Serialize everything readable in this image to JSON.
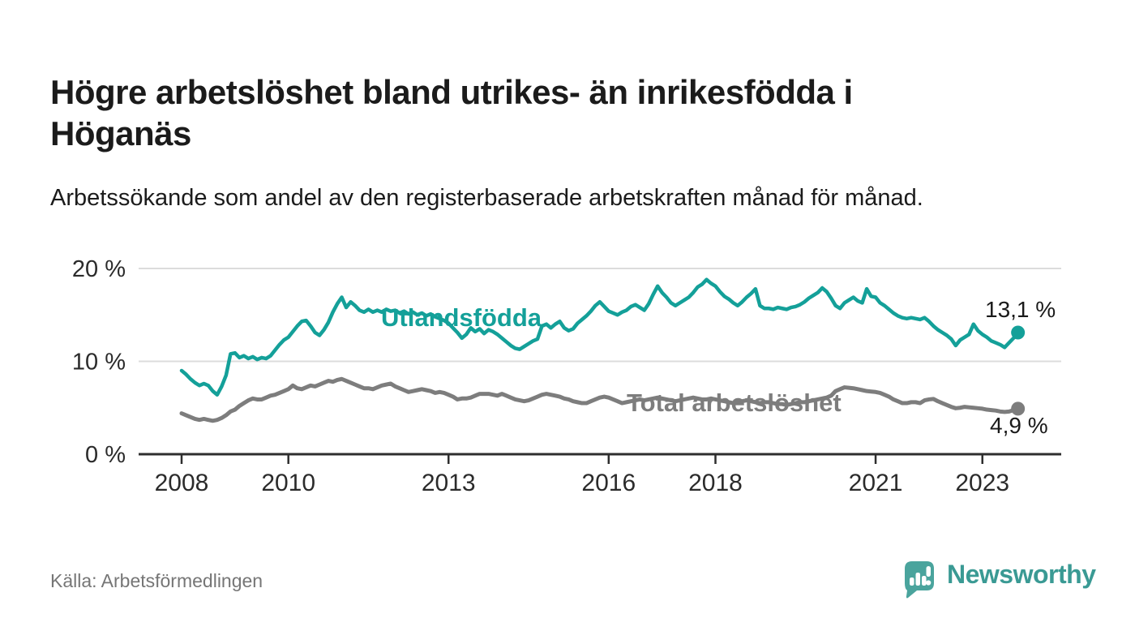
{
  "header": {
    "title": "Högre arbetslöshet bland utrikes- än inrikesfödda i Höganäs",
    "subtitle": "Arbetssökande som andel av den registerbaserade arbetskraften månad för månad."
  },
  "source": {
    "label": "Källa: Arbetsförmedlingen"
  },
  "branding": {
    "name": "Newsworthy",
    "icon": "newsworthy-speech-bubble-chart-icon",
    "icon_color": "#4aa49d",
    "text_color": "#3a9a94"
  },
  "chart_data": {
    "type": "line",
    "title": "Högre arbetslöshet bland utrikes- än inrikesfödda i Höganäs",
    "subtitle": "Arbetssökande som andel av den registerbaserade arbetskraften månad för månad.",
    "xlabel": "",
    "ylabel": "",
    "x_start_year": 2008,
    "x_step_months": 1,
    "x_end": "2023-09",
    "ylim": [
      0,
      21
    ],
    "grid": "horizontal",
    "y_ticks": [
      {
        "value": 0,
        "label": "0 %"
      },
      {
        "value": 10,
        "label": "10 %"
      },
      {
        "value": 20,
        "label": "20 %"
      }
    ],
    "x_ticks": [
      {
        "value": 2008,
        "label": "2008"
      },
      {
        "value": 2010,
        "label": "2010"
      },
      {
        "value": 2013,
        "label": "2013"
      },
      {
        "value": 2016,
        "label": "2016"
      },
      {
        "value": 2018,
        "label": "2018"
      },
      {
        "value": 2021,
        "label": "2021"
      },
      {
        "value": 2023,
        "label": "2023"
      }
    ],
    "series": [
      {
        "name": "Utlandsfödda",
        "color": "#14a099",
        "end_label": "13,1 %",
        "end_value": 13.1,
        "values": [
          9.0,
          8.6,
          8.1,
          7.7,
          7.4,
          7.6,
          7.4,
          6.8,
          6.4,
          7.3,
          8.5,
          10.8,
          10.9,
          10.4,
          10.6,
          10.3,
          10.5,
          10.2,
          10.4,
          10.3,
          10.6,
          11.2,
          11.8,
          12.3,
          12.6,
          13.2,
          13.8,
          14.3,
          14.4,
          13.8,
          13.1,
          12.8,
          13.4,
          14.2,
          15.3,
          16.2,
          16.9,
          15.8,
          16.4,
          16.0,
          15.5,
          15.3,
          15.6,
          15.3,
          15.5,
          15.3,
          15.6,
          15.4,
          15.5,
          15.2,
          15.4,
          15.1,
          15.3,
          15.0,
          15.2,
          14.9,
          15.1,
          14.8,
          14.6,
          14.4,
          14.1,
          13.6,
          13.1,
          12.5,
          12.9,
          13.6,
          13.2,
          13.5,
          13.0,
          13.4,
          13.2,
          12.9,
          12.5,
          12.1,
          11.7,
          11.4,
          11.3,
          11.6,
          11.9,
          12.2,
          12.4,
          13.8,
          14.0,
          13.6,
          14.0,
          14.3,
          13.6,
          13.3,
          13.5,
          14.1,
          14.5,
          14.9,
          15.4,
          16.0,
          16.4,
          15.9,
          15.4,
          15.2,
          15.0,
          15.3,
          15.5,
          15.9,
          16.1,
          15.8,
          15.5,
          16.2,
          17.2,
          18.1,
          17.4,
          16.9,
          16.3,
          16.0,
          16.3,
          16.6,
          16.9,
          17.4,
          18.0,
          18.3,
          18.8,
          18.4,
          18.1,
          17.5,
          17.0,
          16.7,
          16.3,
          16.0,
          16.4,
          16.9,
          17.3,
          17.8,
          16.0,
          15.7,
          15.7,
          15.6,
          15.8,
          15.7,
          15.6,
          15.8,
          15.9,
          16.1,
          16.4,
          16.8,
          17.1,
          17.4,
          17.9,
          17.5,
          16.8,
          16.0,
          15.7,
          16.3,
          16.6,
          16.9,
          16.5,
          16.3,
          17.8,
          17.0,
          16.9,
          16.3,
          16.0,
          15.6,
          15.2,
          14.9,
          14.7,
          14.6,
          14.7,
          14.6,
          14.5,
          14.7,
          14.3,
          13.8,
          13.4,
          13.1,
          12.8,
          12.4,
          11.7,
          12.3,
          12.6,
          12.9,
          14.0,
          13.3,
          12.9,
          12.6,
          12.2,
          12.0,
          11.8,
          11.5,
          12.0,
          12.5,
          13.1
        ]
      },
      {
        "name": "Total arbetslöshet",
        "color": "#7d7d7d",
        "end_label": "4,9 %",
        "end_value": 4.9,
        "values": [
          4.4,
          4.2,
          4.0,
          3.8,
          3.7,
          3.8,
          3.7,
          3.6,
          3.7,
          3.9,
          4.2,
          4.6,
          4.8,
          5.2,
          5.5,
          5.8,
          6.0,
          5.9,
          5.9,
          6.1,
          6.3,
          6.4,
          6.6,
          6.8,
          7.0,
          7.4,
          7.1,
          7.0,
          7.2,
          7.4,
          7.3,
          7.5,
          7.7,
          7.9,
          7.8,
          8.0,
          8.1,
          7.9,
          7.7,
          7.5,
          7.3,
          7.1,
          7.1,
          7.0,
          7.2,
          7.4,
          7.5,
          7.6,
          7.3,
          7.1,
          6.9,
          6.7,
          6.8,
          6.9,
          7.0,
          6.9,
          6.8,
          6.6,
          6.7,
          6.6,
          6.4,
          6.2,
          5.9,
          6.0,
          6.0,
          6.1,
          6.3,
          6.5,
          6.5,
          6.5,
          6.4,
          6.3,
          6.5,
          6.3,
          6.1,
          5.9,
          5.8,
          5.7,
          5.8,
          6.0,
          6.2,
          6.4,
          6.5,
          6.4,
          6.3,
          6.2,
          6.0,
          5.9,
          5.7,
          5.6,
          5.5,
          5.5,
          5.7,
          5.9,
          6.1,
          6.2,
          6.1,
          5.9,
          5.7,
          5.5,
          5.6,
          5.7,
          5.8,
          5.9,
          5.8,
          5.9,
          6.0,
          6.1,
          6.0,
          5.9,
          5.8,
          5.7,
          5.8,
          5.9,
          6.0,
          6.1,
          6.0,
          5.9,
          5.9,
          6.0,
          5.9,
          5.8,
          5.7,
          5.6,
          5.5,
          5.6,
          5.7,
          5.8,
          5.7,
          5.6,
          5.5,
          5.6,
          5.6,
          5.5,
          5.4,
          5.4,
          5.3,
          5.4,
          5.5,
          5.6,
          5.6,
          5.7,
          5.8,
          5.9,
          6.0,
          6.1,
          6.3,
          6.8,
          7.0,
          7.2,
          7.15,
          7.1,
          7.0,
          6.9,
          6.8,
          6.75,
          6.7,
          6.6,
          6.4,
          6.2,
          5.9,
          5.7,
          5.5,
          5.5,
          5.6,
          5.6,
          5.5,
          5.8,
          5.9,
          5.95,
          5.7,
          5.5,
          5.3,
          5.1,
          4.95,
          5.0,
          5.1,
          5.05,
          5.0,
          4.95,
          4.9,
          4.8,
          4.75,
          4.7,
          4.6,
          4.55,
          4.6,
          4.75,
          4.9
        ]
      }
    ],
    "style": {
      "grid_color": "#dcdcdc",
      "axis_color": "#2e2e2e",
      "tick_label_color": "#2b2b2b"
    }
  }
}
